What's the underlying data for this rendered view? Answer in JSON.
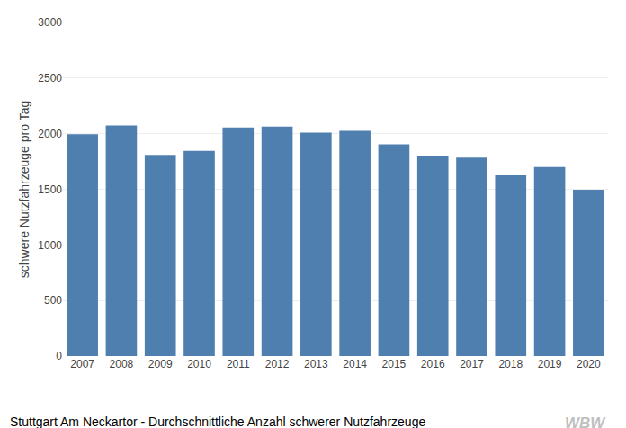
{
  "chart_data": {
    "type": "bar",
    "categories": [
      "2007",
      "2008",
      "2009",
      "2010",
      "2011",
      "2012",
      "2013",
      "2014",
      "2015",
      "2016",
      "2017",
      "2018",
      "2019",
      "2020"
    ],
    "values": [
      1995,
      2075,
      1810,
      1845,
      2055,
      2065,
      2010,
      2025,
      1905,
      1800,
      1785,
      1625,
      1700,
      1495
    ],
    "color": "#4e7faf",
    "y_label": "schwere Nutzfahrzeuge pro Tag",
    "ylim": [
      0,
      3000
    ],
    "yticks": [
      0,
      500,
      1000,
      1500,
      2000,
      2500,
      3000
    ],
    "grid": true,
    "caption": "Stuttgart Am Neckartor - Durchschnittliche Anzahl schwerer Nutzfahrzeuge",
    "annotations": [
      {
        "text": "WBW",
        "color": "#c0c0c0"
      }
    ]
  }
}
